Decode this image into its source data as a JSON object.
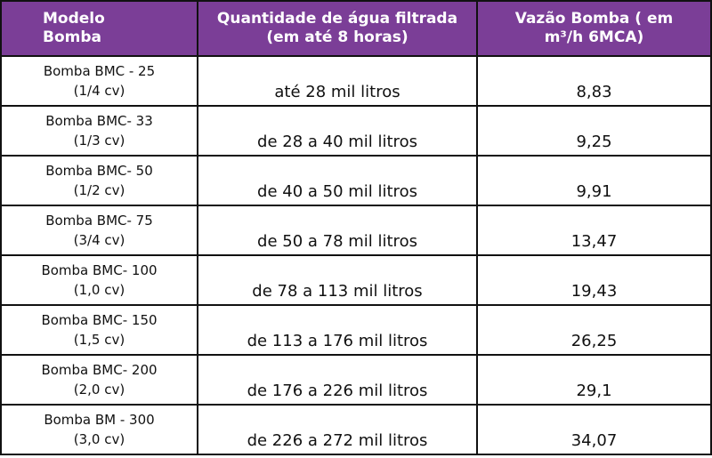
{
  "table": {
    "header": [
      [
        "Modelo",
        "Bomba"
      ],
      [
        "Quantidade de água filtrada",
        "(em até 8 horas)"
      ],
      [
        "Vazão Bomba ( em",
        "m³/h 6MCA)"
      ]
    ],
    "rows": [
      {
        "model": [
          "Bomba BMC - 25",
          "(1/4 cv)"
        ],
        "quantity": "até 28 mil litros",
        "flow": "8,83"
      },
      {
        "model": [
          "Bomba BMC- 33",
          "(1/3 cv)"
        ],
        "quantity": "de 28 a 40 mil litros",
        "flow": "9,25"
      },
      {
        "model": [
          "Bomba BMC- 50",
          "(1/2 cv)"
        ],
        "quantity": "de 40 a 50 mil litros",
        "flow": "9,91"
      },
      {
        "model": [
          "Bomba BMC- 75",
          "(3/4 cv)"
        ],
        "quantity": "de 50 a 78 mil litros",
        "flow": "13,47"
      },
      {
        "model": [
          "Bomba BMC- 100",
          "(1,0 cv)"
        ],
        "quantity": "de 78 a 113 mil litros",
        "flow": "19,43"
      },
      {
        "model": [
          "Bomba BMC- 150",
          "(1,5 cv)"
        ],
        "quantity": "de 113 a 176 mil litros",
        "flow": "26,25"
      },
      {
        "model": [
          "Bomba BMC- 200",
          "(2,0 cv)"
        ],
        "quantity": "de 176 a 226 mil litros",
        "flow": "29,1"
      },
      {
        "model": [
          "Bomba BM - 300",
          "(3,0 cv)"
        ],
        "quantity": "de 226 a 272 mil litros",
        "flow": "34,07"
      }
    ]
  }
}
